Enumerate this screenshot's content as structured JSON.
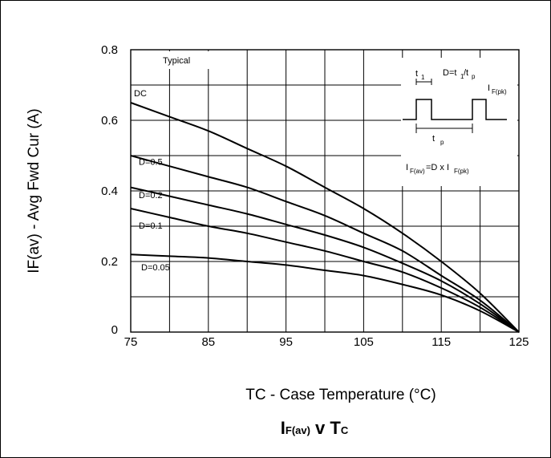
{
  "chart_data": {
    "type": "line",
    "title": "IF(av) v TC",
    "title_parts": {
      "main1": "I",
      "sub1": "F(av)",
      "mid": " v ",
      "main2": "T",
      "sub2": "C"
    },
    "xlabel": "TC - Case Temperature (°C)",
    "ylabel": "IF(av) - Avg Fwd Cur (A)",
    "xlim": [
      75,
      125
    ],
    "ylim": [
      0,
      0.8
    ],
    "x_ticks": [
      75,
      85,
      95,
      105,
      115,
      125
    ],
    "x_tick_labels": [
      "75",
      "85",
      "95",
      "105",
      "115",
      "125"
    ],
    "y_ticks": [
      0,
      0.2,
      0.4,
      0.6,
      0.8
    ],
    "y_tick_labels": [
      "0",
      "0.2",
      "0.4",
      "0.6",
      "0.8"
    ],
    "grid": true,
    "annotation": "Typical",
    "series": [
      {
        "name": "DC",
        "x": [
          75,
          80,
          85,
          90,
          95,
          100,
          105,
          110,
          115,
          120,
          125
        ],
        "y": [
          0.65,
          0.61,
          0.57,
          0.52,
          0.47,
          0.41,
          0.35,
          0.28,
          0.2,
          0.11,
          0.0
        ]
      },
      {
        "name": "D=0.5",
        "x": [
          75,
          80,
          85,
          90,
          95,
          100,
          105,
          110,
          115,
          120,
          125
        ],
        "y": [
          0.5,
          0.47,
          0.44,
          0.41,
          0.37,
          0.33,
          0.28,
          0.23,
          0.16,
          0.09,
          0.0
        ]
      },
      {
        "name": "D=0.2",
        "x": [
          75,
          80,
          85,
          90,
          95,
          100,
          105,
          110,
          115,
          120,
          125
        ],
        "y": [
          0.41,
          0.385,
          0.36,
          0.335,
          0.305,
          0.275,
          0.24,
          0.195,
          0.145,
          0.08,
          0.0
        ]
      },
      {
        "name": "D=0.1",
        "x": [
          75,
          80,
          85,
          90,
          95,
          100,
          105,
          110,
          115,
          120,
          125
        ],
        "y": [
          0.35,
          0.325,
          0.3,
          0.28,
          0.255,
          0.23,
          0.2,
          0.17,
          0.125,
          0.07,
          0.0
        ]
      },
      {
        "name": "D=0.05",
        "x": [
          75,
          80,
          85,
          90,
          95,
          100,
          105,
          110,
          115,
          120,
          125
        ],
        "y": [
          0.22,
          0.215,
          0.21,
          0.2,
          0.19,
          0.175,
          0.16,
          0.135,
          0.105,
          0.06,
          0.0
        ]
      }
    ],
    "inset": {
      "t1": "t1",
      "formula": "D=t1/tp",
      "ipk": "I F(pk)",
      "tp": "t p",
      "equation": "IF(av)=D x IF(pk)"
    }
  }
}
